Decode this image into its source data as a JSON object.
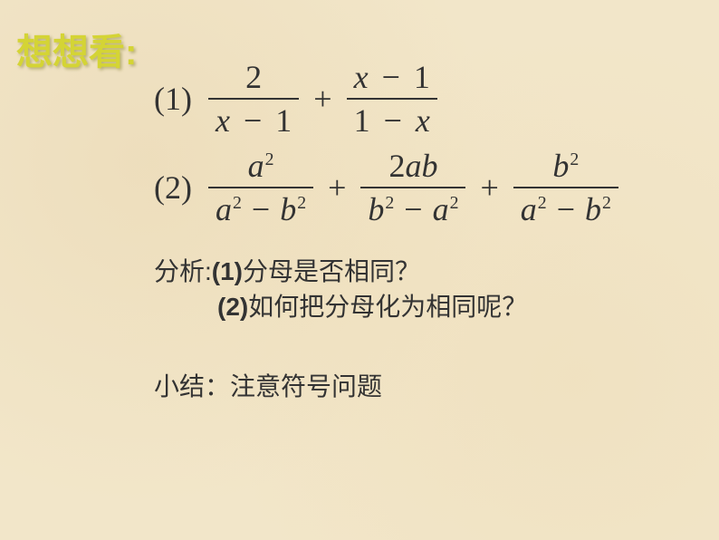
{
  "title": "想想看:",
  "eq1": {
    "label": "(1)",
    "frac1_num": "2",
    "frac1_den_a": "x",
    "frac1_den_op": "−",
    "frac1_den_b": "1",
    "op": "+",
    "frac2_num_a": "x",
    "frac2_num_op": "−",
    "frac2_num_b": "1",
    "frac2_den_a": "1",
    "frac2_den_op": "−",
    "frac2_den_b": "x"
  },
  "eq2": {
    "label": "(2)",
    "f1_num_base": "a",
    "f1_num_exp": "2",
    "f1_den_a": "a",
    "f1_den_aexp": "2",
    "f1_den_op": "−",
    "f1_den_b": "b",
    "f1_den_bexp": "2",
    "op1": "+",
    "f2_num_coef": "2",
    "f2_num_a": "a",
    "f2_num_b": "b",
    "f2_den_a": "b",
    "f2_den_aexp": "2",
    "f2_den_op": "−",
    "f2_den_b": "a",
    "f2_den_bexp": "2",
    "op2": "+",
    "f3_num_base": "b",
    "f3_num_exp": "2",
    "f3_den_a": "a",
    "f3_den_aexp": "2",
    "f3_den_op": "−",
    "f3_den_b": "b",
    "f3_den_bexp": "2"
  },
  "analysis": {
    "prefix": "分析:",
    "q1_label": "(1)",
    "q1_text": "分母是否相同？",
    "q2_label": "(2)",
    "q2_text": "如何把分母化为相同呢？"
  },
  "summary": {
    "prefix": "小结：",
    "text": "注意符号问题"
  },
  "colors": {
    "title_color": "#d4d435",
    "text_color": "#333333",
    "background": "#f2e6c9"
  },
  "fonts": {
    "title_size": 40,
    "math_size": 36,
    "body_size": 28
  }
}
